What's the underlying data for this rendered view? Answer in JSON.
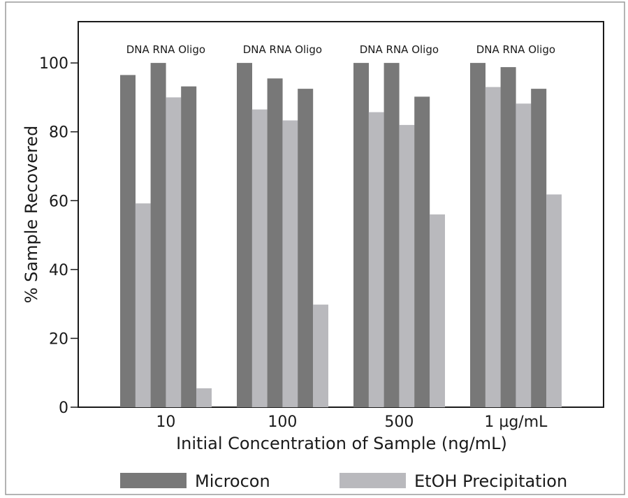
{
  "chart_data": {
    "type": "bar",
    "categories": [
      "10",
      "100",
      "500",
      "1 µg/mL"
    ],
    "subcategories": [
      "DNA",
      "RNA",
      "Oligo"
    ],
    "group_label": "DNA RNA Oligo",
    "series": [
      {
        "name": "Microcon",
        "values": [
          [
            96.5,
            100,
            93.2
          ],
          [
            100,
            95.5,
            92.5
          ],
          [
            100,
            100,
            90.2
          ],
          [
            100,
            98.8,
            92.5
          ]
        ]
      },
      {
        "name": "EtOH Precipitation",
        "values": [
          [
            59.2,
            90,
            5.5
          ],
          [
            86.5,
            83.3,
            29.8
          ],
          [
            85.7,
            82,
            56
          ],
          [
            93,
            88.2,
            61.8
          ]
        ]
      }
    ],
    "title": "",
    "xlabel": "Initial Concentration of Sample (ng/mL)",
    "ylabel": "% Sample Recovered",
    "ylim": [
      0,
      112
    ],
    "yticks": [
      0,
      20,
      40,
      60,
      80,
      100
    ],
    "legend_position": "bottom",
    "grid": false,
    "colors": {
      "Microcon": "#787878",
      "EtOH Precipitation": "#b9b9bd",
      "frame": "#1a1a1a",
      "background": "#ffffff",
      "outer_border": "#9a9a9a"
    }
  }
}
